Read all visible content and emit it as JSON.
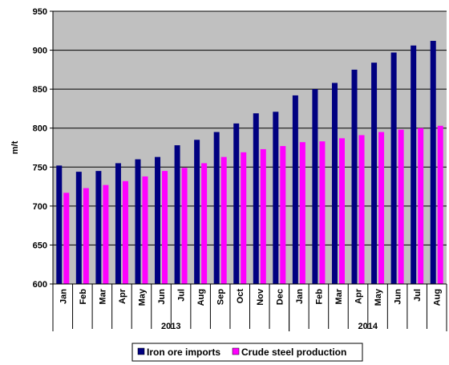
{
  "chart_data": {
    "type": "bar",
    "ylabel": "m/t",
    "ylim": [
      600,
      950
    ],
    "yticks": [
      600,
      650,
      700,
      750,
      800,
      850,
      900,
      950
    ],
    "grid": true,
    "legend_position": "bottom",
    "categories": [
      "Jan",
      "Feb",
      "Mar",
      "Apr",
      "May",
      "Jun",
      "Jul",
      "Aug",
      "Sep",
      "Oct",
      "Nov",
      "Dec",
      "Jan",
      "Feb",
      "Mar",
      "Apr",
      "May",
      "Jun",
      "Jul",
      "Aug"
    ],
    "groups": [
      {
        "label": "2013",
        "count": 12
      },
      {
        "label": "2014",
        "count": 8
      }
    ],
    "series": [
      {
        "name": "Iron ore imports",
        "color": "#000080",
        "values": [
          752,
          744,
          745,
          755,
          760,
          763,
          778,
          785,
          795,
          806,
          819,
          821,
          842,
          850,
          858,
          875,
          884,
          897,
          906,
          912
        ]
      },
      {
        "name": "Crude steel production",
        "color": "#ff00ff",
        "values": [
          717,
          723,
          727,
          732,
          738,
          745,
          749,
          755,
          763,
          769,
          773,
          777,
          782,
          783,
          787,
          791,
          795,
          798,
          800,
          803
        ]
      }
    ],
    "plot_background": "#c0c0c0"
  }
}
